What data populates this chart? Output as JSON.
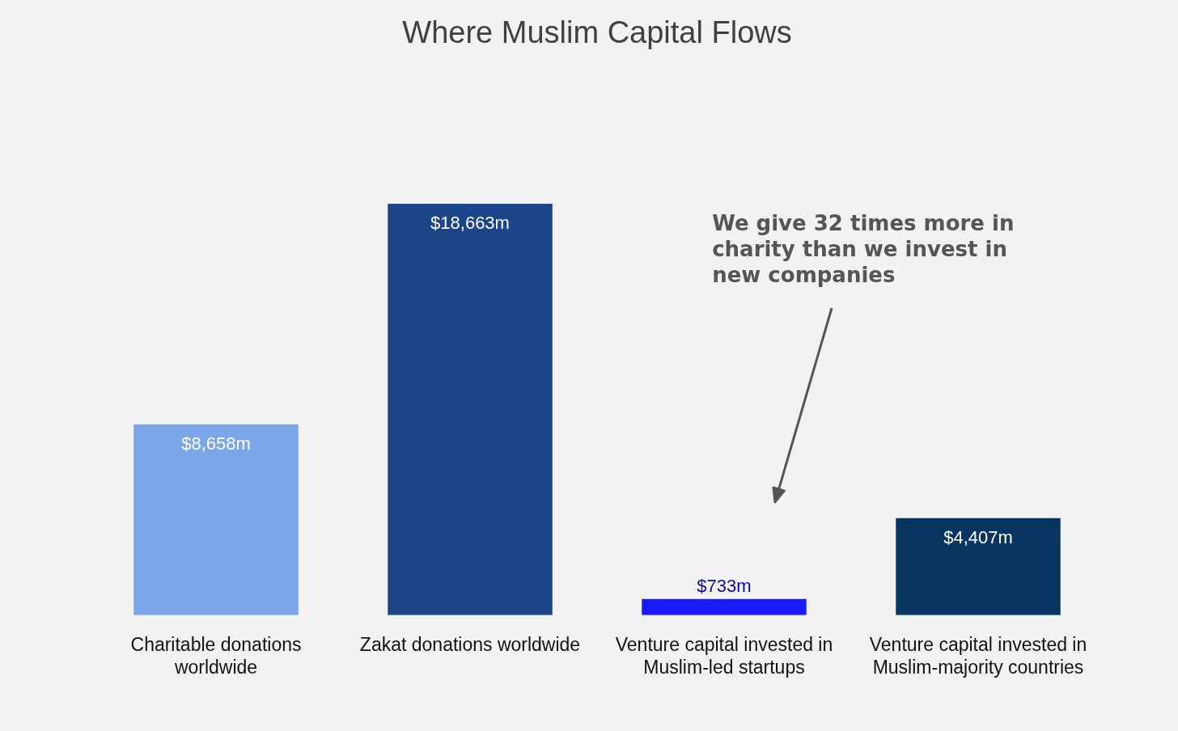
{
  "chart_data": {
    "type": "bar",
    "title": "Where Muslim Capital Flows",
    "categories": [
      "Charitable donations worldwide",
      "Zakat donations worldwide",
      "Venture capital invested in Muslim-led startups",
      "Venture capital invested in Muslim-majority countries"
    ],
    "values": [
      8658,
      18663,
      733,
      4407
    ],
    "colors": [
      "#7ba6ea",
      "#1c4488",
      "#1a1aff",
      "#08355f"
    ],
    "value_labels": [
      "$8,658m",
      "$18,663m",
      "$733m",
      "$4,407m"
    ],
    "annotations": [
      "We give 32 times more in charity than we invest in new companies"
    ],
    "grid": false,
    "legend": false
  }
}
